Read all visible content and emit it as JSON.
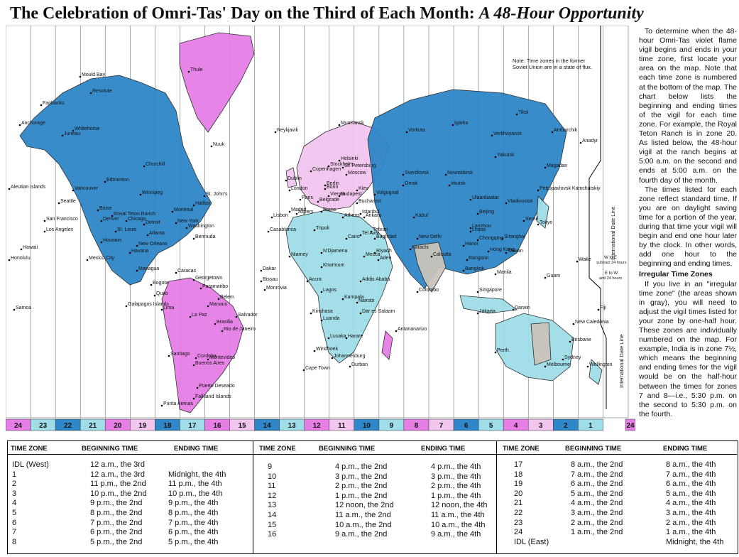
{
  "title": {
    "main": "The Celebration of Omri-Tas' Day on the Third of Each Month:",
    "subtitle": "A 48-Hour Opportunity"
  },
  "map": {
    "note": [
      "Note: Time zones in the former",
      "Soviet Union are in a state of flux."
    ],
    "idl_label": "International Date Line",
    "w_to_e": [
      "W to E",
      "subtract 24 hours"
    ],
    "e_to_w": [
      "E to W",
      "add 24 hours"
    ],
    "zone_numbers": [
      "24",
      "23",
      "22",
      "21",
      "20",
      "19",
      "18",
      "17",
      "16",
      "15",
      "14",
      "13",
      "12",
      "11",
      "10",
      "9",
      "8",
      "7",
      "6",
      "5",
      "4",
      "3",
      "2",
      "1",
      "24"
    ],
    "colors": {
      "pink": "#e67ee6",
      "lightpink": "#f3c6f0",
      "blue": "#2f86c8",
      "lightblue": "#9fdde8",
      "gray": "#c9c4bc",
      "ocean": "#ffffff"
    },
    "cities": [
      "Mould Bay",
      "Resolute",
      "Thule",
      "Nuuk",
      "Fairbanks",
      "Anchorage",
      "Whitehorse",
      "Juneau",
      "Churchill",
      "Edmonton",
      "Aleutian Islands",
      "Vancouver",
      "Winnipeg",
      "Seattle",
      "Boise",
      "Royal Teton Ranch",
      "Denver",
      "Chicago",
      "Detroit",
      "Montreal",
      "Halifax",
      "St. John's",
      "New York",
      "Washington",
      "San Francisco",
      "Los Angeles",
      "St. Louis",
      "Atlanta",
      "Houston",
      "New Orleans",
      "Bermuda",
      "Hawaii",
      "Honolulu",
      "Mexico City",
      "Havana",
      "Managua",
      "Caracas",
      "Bogota",
      "Quito",
      "Georgetown",
      "Paramaribo",
      "Belem",
      "Manaus",
      "Lima",
      "La Paz",
      "Brasilia",
      "Salvador",
      "Rio de Janeiro",
      "Santiago",
      "Cordoba",
      "Montevideo",
      "Buenos Aires",
      "Puerto Deseado",
      "Falkland Islands",
      "Punta Arenas",
      "Galapagos Islands",
      "Samoa",
      "Reykjavik",
      "Dublin",
      "London",
      "Paris",
      "Madrid",
      "Lisbon",
      "Casablanca",
      "Algiers",
      "Tripoli",
      "Copenhagen",
      "Stockholm",
      "Helsinki",
      "St. Petersburg",
      "Moscow",
      "Murmansk",
      "Berlin",
      "Bonn",
      "Vienna",
      "Budapest",
      "Bucharest",
      "Belgrade",
      "Rome",
      "Athens",
      "Istanbul",
      "Ankara",
      "Kiev",
      "Volgograd",
      "Sverdlovsk",
      "Omsk",
      "Novosibirsk",
      "Irkutsk",
      "Vorkuta",
      "Igarka",
      "Verkhoyansk",
      "Yakutsk",
      "Tiksi",
      "Ambarchik",
      "Anadyr",
      "Magadan",
      "Petropavlovsk Kamchatskiy",
      "Ulaanbaatar",
      "Vladivostok",
      "Beijing",
      "Lanzhou",
      "Shanghai",
      "Chongqing",
      "Lhasa",
      "Taiwan",
      "Hong Kong",
      "Hanoi",
      "Rangoon",
      "Bangkok",
      "Manila",
      "Tokyo",
      "Seoul",
      "Tehran",
      "Baghdad",
      "Kabul",
      "New Delhi",
      "Karachi",
      "Calcutta",
      "Colombo",
      "Mecca",
      "Aden",
      "Addis Ababa",
      "Khartoum",
      "N'Djamena",
      "Niamey",
      "Dakar",
      "Bissau",
      "Monrovia",
      "Accra",
      "Lagos",
      "Kinshasa",
      "Luanda",
      "Kampala",
      "Nairobi",
      "Dar es Salaam",
      "Lusaka",
      "Harare",
      "Windhoek",
      "Johannesburg",
      "Durban",
      "Cape Town",
      "Antananarivo",
      "Singapore",
      "Jakarta",
      "Darwin",
      "Perth",
      "Brisbane",
      "Sydney",
      "Melbourne",
      "Wellington",
      "New Caledonia",
      "Fiji",
      "Guam",
      "Wake",
      "Cairo",
      "Tel Aviv",
      "Riyadh"
    ]
  },
  "sidebar": {
    "para1": "To determine when the 48-hour Omri-Tas violet flame vigil begins and ends in your time zone, first locate your area on the map. Note that each time zone is numbered at the bottom of the map. The chart below lists the beginning and ending times of the vigil for each time zone. For example, the Royal Teton Ranch is in zone 20. As listed below, the 48-hour vigil at the ranch begins at 5:00 a.m. on the second and ends at 5:00 a.m. on the fourth day of the month.",
    "para2": "The times listed for each zone reflect standard time. If you are on daylight saving time for a portion of the year, during that time your vigil will begin and end one hour later by the clock. In other words, add one hour to the beginning and ending times.",
    "heading": "Irregular Time Zones",
    "para3": "If you live in an \"irregular time zone\" (the areas shown in gray), you will need to adjust the vigil times listed for your zone by one-half hour. These zones are individually numbered on the map. For example, India is in zone 7½, which means the beginning and ending times for the vigil would be on the half-hour between the times for zones 7 and 8—i.e., 5:30 p.m. on the second to 5:30 p.m. on the fourth."
  },
  "table": {
    "headers": {
      "zone": "TIME ZONE",
      "begin": "BEGINNING TIME",
      "end": "ENDING TIME"
    },
    "col1": [
      {
        "zone": "IDL (West)",
        "begin": "12 a.m., the 3rd",
        "end": ""
      },
      {
        "zone": "1",
        "begin": "12 a.m., the 3rd",
        "end": "Midnight, the 4th"
      },
      {
        "zone": "2",
        "begin": "11 p.m., the 2nd",
        "end": "11 p.m., the 4th"
      },
      {
        "zone": "3",
        "begin": "10 p.m., the 2nd",
        "end": "10 p.m., the 4th"
      },
      {
        "zone": "4",
        "begin": "9 p.m., the 2nd",
        "end": "9 p.m., the 4th"
      },
      {
        "zone": "5",
        "begin": "8 p.m., the 2nd",
        "end": "8 p.m., the 4th"
      },
      {
        "zone": "6",
        "begin": "7 p.m., the 2nd",
        "end": "7 p.m., the 4th"
      },
      {
        "zone": "7",
        "begin": "6 p.m., the 2nd",
        "end": "6 p.m., the 4th"
      },
      {
        "zone": "8",
        "begin": "5 p.m., the 2nd",
        "end": "5 p.m., the 4th"
      }
    ],
    "col2": [
      {
        "zone": "9",
        "begin": "4 p.m., the 2nd",
        "end": "4 p.m., the 4th"
      },
      {
        "zone": "10",
        "begin": "3 p.m., the 2nd",
        "end": "3 p.m., the 4th"
      },
      {
        "zone": "11",
        "begin": "2 p.m., the 2nd",
        "end": "2 p.m., the 4th"
      },
      {
        "zone": "12",
        "begin": "1 p.m., the 2nd",
        "end": "1 p.m., the 4th"
      },
      {
        "zone": "13",
        "begin": "12 noon, the 2nd",
        "end": "12 noon, the 4th"
      },
      {
        "zone": "14",
        "begin": "11 a.m., the 2nd",
        "end": "11 a.m., the 4th"
      },
      {
        "zone": "15",
        "begin": "10 a.m., the 2nd",
        "end": "10 a.m., the 4th"
      },
      {
        "zone": "16",
        "begin": "9 a.m., the 2nd",
        "end": "9 a.m., the 4th"
      }
    ],
    "col3": [
      {
        "zone": "17",
        "begin": "8 a.m., the 2nd",
        "end": "8 a.m., the 4th"
      },
      {
        "zone": "18",
        "begin": "7 a.m., the 2nd",
        "end": "7 a.m., the 4th"
      },
      {
        "zone": "19",
        "begin": "6 a.m., the 2nd",
        "end": "6 a.m., the 4th"
      },
      {
        "zone": "20",
        "begin": "5 a.m., the 2nd",
        "end": "5 a.m., the 4th"
      },
      {
        "zone": "21",
        "begin": "4 a.m., the 2nd",
        "end": "4 a.m., the 4th"
      },
      {
        "zone": "22",
        "begin": "3 a.m., the 2nd",
        "end": "3 a.m., the 4th"
      },
      {
        "zone": "23",
        "begin": "2 a.m., the 2nd",
        "end": "2 a.m., the 4th"
      },
      {
        "zone": "24",
        "begin": "1 a.m., the 2nd",
        "end": "1 a.m., the 4th"
      },
      {
        "zone": "IDL (East)",
        "begin": "",
        "end": "Midnight, the 4th"
      }
    ]
  }
}
